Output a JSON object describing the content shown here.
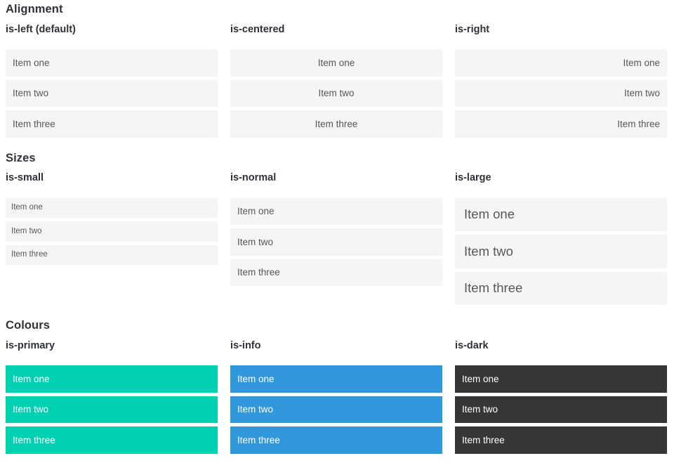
{
  "colors": {
    "primary": "#00d1b2",
    "info": "#3298dc",
    "dark": "#363636",
    "item_background": "#f5f5f5",
    "item_text": "#55575c",
    "heading_text": "#2f3338"
  },
  "sections": [
    {
      "title": "Alignment",
      "columns": [
        {
          "label": "is-left (default)",
          "alignment": "left",
          "items": [
            "Item one",
            "Item two",
            "Item three"
          ]
        },
        {
          "label": "is-centered",
          "alignment": "center",
          "items": [
            "Item one",
            "Item two",
            "Item three"
          ]
        },
        {
          "label": "is-right",
          "alignment": "right",
          "items": [
            "Item one",
            "Item two",
            "Item three"
          ]
        }
      ]
    },
    {
      "title": "Sizes",
      "columns": [
        {
          "label": "is-small",
          "size": "small",
          "items": [
            "Item one",
            "Item two",
            "Item three"
          ]
        },
        {
          "label": "is-normal",
          "size": "normal",
          "items": [
            "Item one",
            "Item two",
            "Item three"
          ]
        },
        {
          "label": "is-large",
          "size": "large",
          "items": [
            "Item one",
            "Item two",
            "Item three"
          ]
        }
      ]
    },
    {
      "title": "Colours",
      "columns": [
        {
          "label": "is-primary",
          "color": "primary",
          "items": [
            "Item one",
            "Item two",
            "Item three"
          ]
        },
        {
          "label": "is-info",
          "color": "info",
          "items": [
            "Item one",
            "Item two",
            "Item three"
          ]
        },
        {
          "label": "is-dark",
          "color": "dark",
          "items": [
            "Item one",
            "Item two",
            "Item three"
          ]
        }
      ]
    }
  ]
}
